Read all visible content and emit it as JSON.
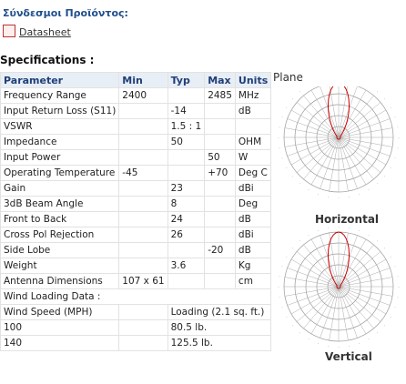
{
  "links": {
    "title": "Σύνδεσμοι Προϊόντος:",
    "items": [
      "Datasheet"
    ]
  },
  "specs": {
    "title": "Specifications :",
    "header": [
      "Parameter",
      "Min",
      "Typ",
      "Max",
      "Units"
    ],
    "rows": [
      {
        "parameter": "Frequency Range",
        "min": "2400",
        "max": "2485",
        "units": "MHz"
      },
      {
        "parameter": "Input Return Loss (S11)",
        "typ": "-14",
        "units": "dB"
      },
      {
        "parameter": "VSWR",
        "typ": "1.5 : 1"
      },
      {
        "parameter": "Impedance",
        "typ": "50",
        "units": "OHM"
      },
      {
        "parameter": "Input Power",
        "max": "50",
        "units": "W"
      },
      {
        "parameter": "Operating Temperature",
        "min": "-45",
        "max": "+70",
        "units": "Deg C"
      },
      {
        "parameter": "Gain",
        "typ": "23",
        "units": "dBi"
      },
      {
        "parameter": "3dB Beam Angle",
        "typ": "8",
        "units": "Deg"
      },
      {
        "parameter": "Front to Back",
        "typ": "24",
        "units": "dB"
      },
      {
        "parameter": "Cross Pol Rejection",
        "typ": "26",
        "units": "dBi"
      },
      {
        "parameter": "Side Lobe",
        "max": "-20",
        "units": "dB"
      },
      {
        "parameter": "Weight",
        "typ": "3.6",
        "units": "Kg"
      },
      {
        "parameter": "Antenna Dimensions",
        "min": "107 x 61",
        "units": "cm"
      },
      {
        "parameter": "Wind Loading Data :"
      },
      {
        "parameter": "Wind Speed (MPH)",
        "loading": "Loading (2.1 sq. ft.)"
      },
      {
        "parameter": "100",
        "loading": "80.5 lb."
      },
      {
        "parameter": "140",
        "loading": "125.5 lb."
      }
    ]
  },
  "patterns": {
    "title": "Plane",
    "horizontal": "Horizontal",
    "vertical": "Vertical"
  }
}
